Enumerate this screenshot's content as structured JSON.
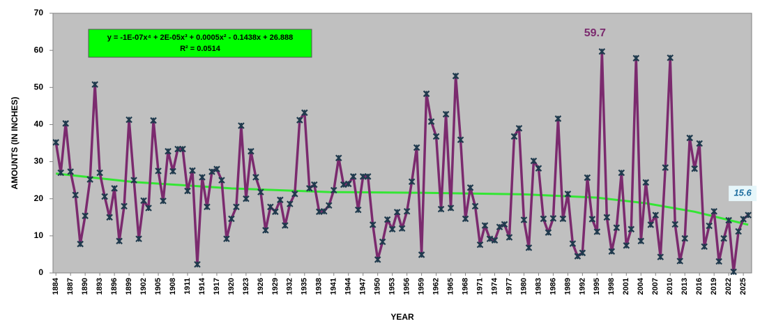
{
  "chart_data": {
    "type": "line",
    "y_label": "AMOUNTS (IN INCHES)",
    "x_label": "YEAR",
    "equation": "y = -1E-07x⁴ + 2E-05x³ + 0.0005x² - 0.1438x + 26.888",
    "r_squared": "R² = 0.0514",
    "x": [
      1884,
      1885,
      1886,
      1887,
      1888,
      1889,
      1890,
      1891,
      1892,
      1893,
      1894,
      1895,
      1896,
      1897,
      1898,
      1899,
      1900,
      1901,
      1902,
      1903,
      1904,
      1905,
      1906,
      1907,
      1908,
      1909,
      1910,
      1911,
      1912,
      1913,
      1914,
      1915,
      1916,
      1917,
      1918,
      1919,
      1920,
      1921,
      1922,
      1923,
      1924,
      1925,
      1926,
      1927,
      1928,
      1929,
      1930,
      1931,
      1932,
      1933,
      1934,
      1935,
      1936,
      1937,
      1938,
      1939,
      1940,
      1941,
      1942,
      1943,
      1944,
      1945,
      1946,
      1947,
      1948,
      1949,
      1950,
      1951,
      1952,
      1953,
      1954,
      1955,
      1956,
      1957,
      1958,
      1959,
      1960,
      1961,
      1962,
      1963,
      1964,
      1965,
      1966,
      1967,
      1968,
      1969,
      1970,
      1971,
      1972,
      1973,
      1974,
      1975,
      1976,
      1977,
      1978,
      1979,
      1980,
      1981,
      1982,
      1983,
      1984,
      1985,
      1986,
      1987,
      1988,
      1989,
      1990,
      1991,
      1992,
      1993,
      1994,
      1995,
      1996,
      1997,
      1998,
      1999,
      2000,
      2001,
      2002,
      2003,
      2004,
      2005,
      2006,
      2007,
      2008,
      2009,
      2010,
      2011,
      2012,
      2013,
      2014,
      2015,
      2016,
      2017,
      2018,
      2019,
      2020,
      2021,
      2022,
      2023,
      2024,
      2025,
      2026
    ],
    "series": [
      {
        "color": "#7b2a6e",
        "marker_color": "#1f3a4d",
        "values": [
          35.2,
          27,
          40.3,
          27.3,
          21,
          7.8,
          15.4,
          25.2,
          50.8,
          27,
          20.6,
          15,
          22.8,
          8.6,
          18,
          41.3,
          25,
          9.2,
          19.5,
          17.5,
          41.1,
          27.5,
          19.4,
          32.8,
          27.4,
          33.4,
          33.4,
          22.1,
          27.6,
          2.3,
          25.8,
          17.8,
          27.3,
          28,
          25,
          9.2,
          14.6,
          17.8,
          39.7,
          20,
          32.8,
          25.8,
          21.8,
          11.5,
          17.8,
          16.5,
          19.7,
          12.8,
          18.6,
          21.3,
          41.2,
          43.2,
          22.8,
          23.8,
          16.5,
          16.6,
          18.2,
          22.3,
          31,
          23.8,
          24,
          26,
          17,
          26,
          26,
          13,
          3.6,
          8.4,
          14.4,
          11.8,
          16.4,
          12,
          16.6,
          24.6,
          33.8,
          4.9,
          48.3,
          40.8,
          36.8,
          17.2,
          42.8,
          17.5,
          53.1,
          35.9,
          14.6,
          23,
          18,
          7.6,
          12.8,
          9.2,
          8.8,
          12.4,
          13.1,
          9.6,
          36.8,
          39,
          14.3,
          6.8,
          30.2,
          28.2,
          14.6,
          10.9,
          14.7,
          41.6,
          14.6,
          21.3,
          7.9,
          4.5,
          5.4,
          25.7,
          14.5,
          11.1,
          59.7,
          15,
          5.8,
          12.2,
          27,
          7.4,
          11.8,
          57.9,
          8.6,
          24.4,
          13,
          15.6,
          4.3,
          28.4,
          58,
          13.1,
          3.2,
          9.3,
          36.4,
          28.1,
          34.9,
          7.1,
          12.7,
          16.6,
          3.1,
          9.3,
          14.2,
          0.3,
          11.2,
          14.5,
          15.6
        ]
      }
    ],
    "trendline": {
      "color": "#33e633",
      "x": [
        1884,
        1900,
        1920,
        1940,
        1960,
        1980,
        1995,
        2005,
        2015,
        2026
      ],
      "values": [
        26.8,
        24.5,
        22.8,
        21.8,
        21.6,
        21.2,
        20.3,
        18.8,
        16.5,
        13
      ]
    },
    "annotations": [
      {
        "x": 1996,
        "y": 59.7,
        "text": "59.7",
        "color": "#7b2a6e"
      },
      {
        "x": 2026,
        "y": 15.6,
        "text": "15.6",
        "color": "#1f6fa0"
      }
    ],
    "xlim": [
      1883.4,
      2026.7
    ],
    "ylim": [
      0,
      70
    ],
    "xticks": [
      1884,
      1887,
      1890,
      1893,
      1896,
      1899,
      1902,
      1905,
      1908,
      1911,
      1914,
      1917,
      1920,
      1923,
      1926,
      1929,
      1932,
      1935,
      1938,
      1941,
      1944,
      1947,
      1950,
      1953,
      1956,
      1959,
      1962,
      1965,
      1968,
      1971,
      1974,
      1977,
      1980,
      1983,
      1986,
      1989,
      1992,
      1995,
      1998,
      2001,
      2004,
      2007,
      2010,
      2013,
      2016,
      2019,
      2022,
      2025
    ],
    "yticks": [
      0,
      10,
      20,
      30,
      40,
      50,
      60,
      70
    ],
    "grid": false,
    "background": "#c0c0c0"
  }
}
